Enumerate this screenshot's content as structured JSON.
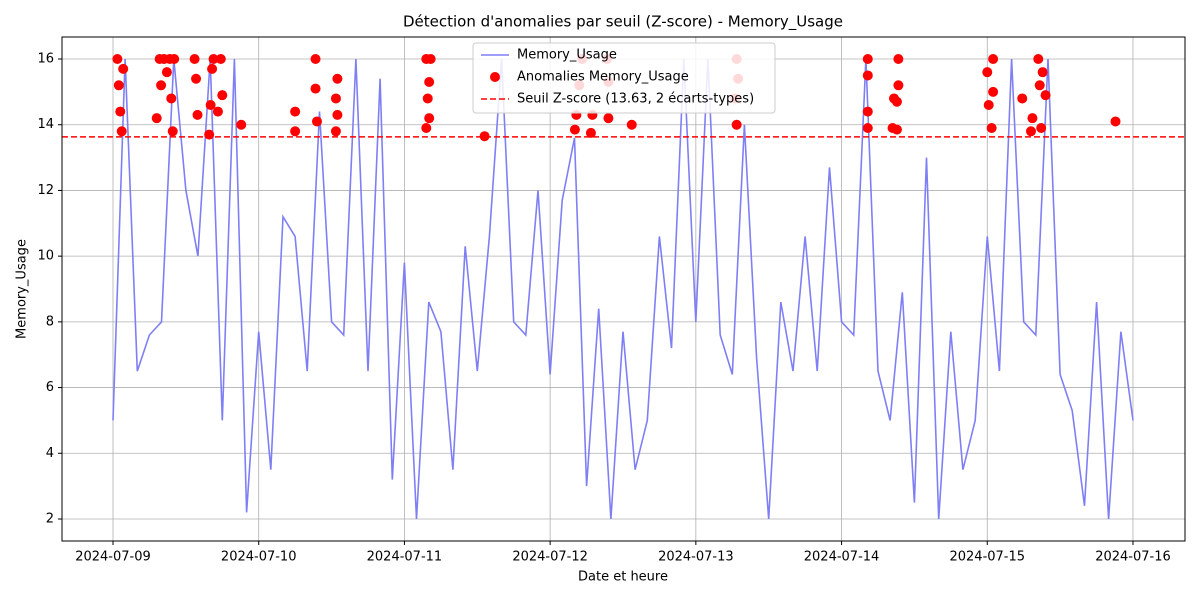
{
  "chart_data": {
    "type": "line",
    "title": "Détection d'anomalies par seuil (Z-score) - Memory_Usage",
    "x_label": "Date et heure",
    "y_label": "Memory_Usage",
    "xlim": [
      -0.35,
      7.357
    ],
    "ylim": [
      1.33,
      16.67
    ],
    "xticks": [
      {
        "value": 0,
        "label": "2024-07-09"
      },
      {
        "value": 1,
        "label": "2024-07-10"
      },
      {
        "value": 2,
        "label": "2024-07-11"
      },
      {
        "value": 3,
        "label": "2024-07-12"
      },
      {
        "value": 4,
        "label": "2024-07-13"
      },
      {
        "value": 5,
        "label": "2024-07-14"
      },
      {
        "value": 6,
        "label": "2024-07-15"
      },
      {
        "value": 7,
        "label": "2024-07-16"
      }
    ],
    "yticks": [
      2,
      4,
      6,
      8,
      10,
      12,
      14,
      16
    ],
    "grid": true,
    "legend": "upper center",
    "series": [
      {
        "name": "Memory_Usage",
        "type": "line",
        "color": "#7f7ff5",
        "x": [
          0,
          0.083,
          0.167,
          0.25,
          0.333,
          0.417,
          0.5,
          0.583,
          0.667,
          0.75,
          0.833,
          0.917,
          1,
          1.083,
          1.167,
          1.25,
          1.333,
          1.417,
          1.5,
          1.583,
          1.667,
          1.75,
          1.833,
          1.917,
          2,
          2.083,
          2.167,
          2.25,
          2.333,
          2.417,
          2.5,
          2.583,
          2.667,
          2.75,
          2.833,
          2.917,
          3,
          3.083,
          3.167,
          3.25,
          3.333,
          3.417,
          3.5,
          3.583,
          3.667,
          3.75,
          3.833,
          3.917,
          4,
          4.083,
          4.167,
          4.25,
          4.333,
          4.417,
          4.5,
          4.583,
          4.667,
          4.75,
          4.833,
          4.917,
          5,
          5.083,
          5.167,
          5.25,
          5.333,
          5.417,
          5.5,
          5.583,
          5.667,
          5.75,
          5.833,
          5.917,
          6,
          6.083,
          6.167,
          6.25,
          6.333,
          6.417,
          6.5,
          6.583,
          6.667,
          6.75,
          6.833,
          6.917,
          7
        ],
        "values": [
          5.0,
          16.0,
          6.5,
          7.6,
          8.0,
          16.0,
          12.0,
          10.0,
          16.0,
          5.0,
          16.0,
          2.2,
          7.7,
          3.5,
          11.2,
          10.6,
          6.5,
          14.4,
          8.0,
          7.6,
          16.0,
          6.5,
          15.4,
          3.2,
          9.8,
          2.0,
          8.6,
          7.7,
          3.5,
          10.3,
          6.5,
          10.6,
          16.0,
          8.0,
          7.6,
          12.0,
          6.4,
          11.7,
          13.6,
          3.0,
          8.4,
          2.0,
          7.7,
          3.5,
          5.0,
          10.6,
          7.2,
          16.0,
          8.0,
          16.0,
          7.6,
          6.4,
          14.0,
          6.9,
          2.0,
          8.6,
          6.5,
          10.6,
          6.5,
          12.7,
          8.0,
          7.6,
          16.0,
          6.5,
          5.0,
          8.9,
          2.5,
          13.0,
          2.0,
          7.7,
          3.5,
          5.0,
          10.6,
          6.5,
          16.0,
          8.0,
          7.6,
          16.0,
          6.4,
          5.3,
          2.4,
          8.6,
          2.0,
          7.7,
          5.0
        ]
      },
      {
        "name": "Anomalies Memory_Usage",
        "type": "scatter",
        "color": "#ff0000",
        "x": [
          0.03,
          0.04,
          0.05,
          0.06,
          0.07,
          0.3,
          0.32,
          0.33,
          0.35,
          0.37,
          0.39,
          0.4,
          0.41,
          0.42,
          0.56,
          0.57,
          0.58,
          0.66,
          0.67,
          0.68,
          0.69,
          0.72,
          0.74,
          0.75,
          0.88,
          1.25,
          1.25,
          1.39,
          1.39,
          1.4,
          1.54,
          1.53,
          1.54,
          1.53,
          2.15,
          2.17,
          2.16,
          2.17,
          2.15,
          2.18,
          2.55,
          3.17,
          3.18,
          3.2,
          3.22,
          3.29,
          3.28,
          3.39,
          3.4,
          3.4,
          3.56,
          4.28,
          4.29,
          4.27,
          4.28,
          5.18,
          5.18,
          5.18,
          5.18,
          5.36,
          5.35,
          5.39,
          5.39,
          5.38,
          5.38,
          6.0,
          6.01,
          6.04,
          6.04,
          6.03,
          6.24,
          6.31,
          6.35,
          6.36,
          6.37,
          6.38,
          6.4,
          6.3,
          6.88
        ],
        "values": [
          16,
          15.2,
          14.4,
          13.8,
          15.7,
          14.2,
          16,
          15.2,
          16,
          15.6,
          16,
          14.8,
          13.8,
          16,
          16,
          15.4,
          14.3,
          13.7,
          14.6,
          15.7,
          16,
          14.4,
          16,
          14.9,
          14.0,
          14.4,
          13.8,
          16,
          15.1,
          14.1,
          15.4,
          14.8,
          14.3,
          13.8,
          16,
          15.3,
          14.8,
          14.2,
          13.9,
          16,
          13.65,
          13.85,
          14.3,
          15.2,
          16,
          14.3,
          13.75,
          16,
          15.3,
          14.2,
          14.0,
          16,
          15.4,
          14.8,
          14.0,
          16,
          15.5,
          14.4,
          13.9,
          14.8,
          13.9,
          16,
          15.2,
          14.7,
          13.85,
          15.6,
          14.6,
          16,
          15.0,
          13.9,
          14.8,
          14.2,
          16,
          15.2,
          13.9,
          15.6,
          14.9,
          13.8,
          14.1
        ]
      }
    ],
    "threshold": {
      "name": "Seuil Z-score (13.63, 2 écarts-types)",
      "value": 13.63,
      "color": "#ff0000"
    }
  }
}
